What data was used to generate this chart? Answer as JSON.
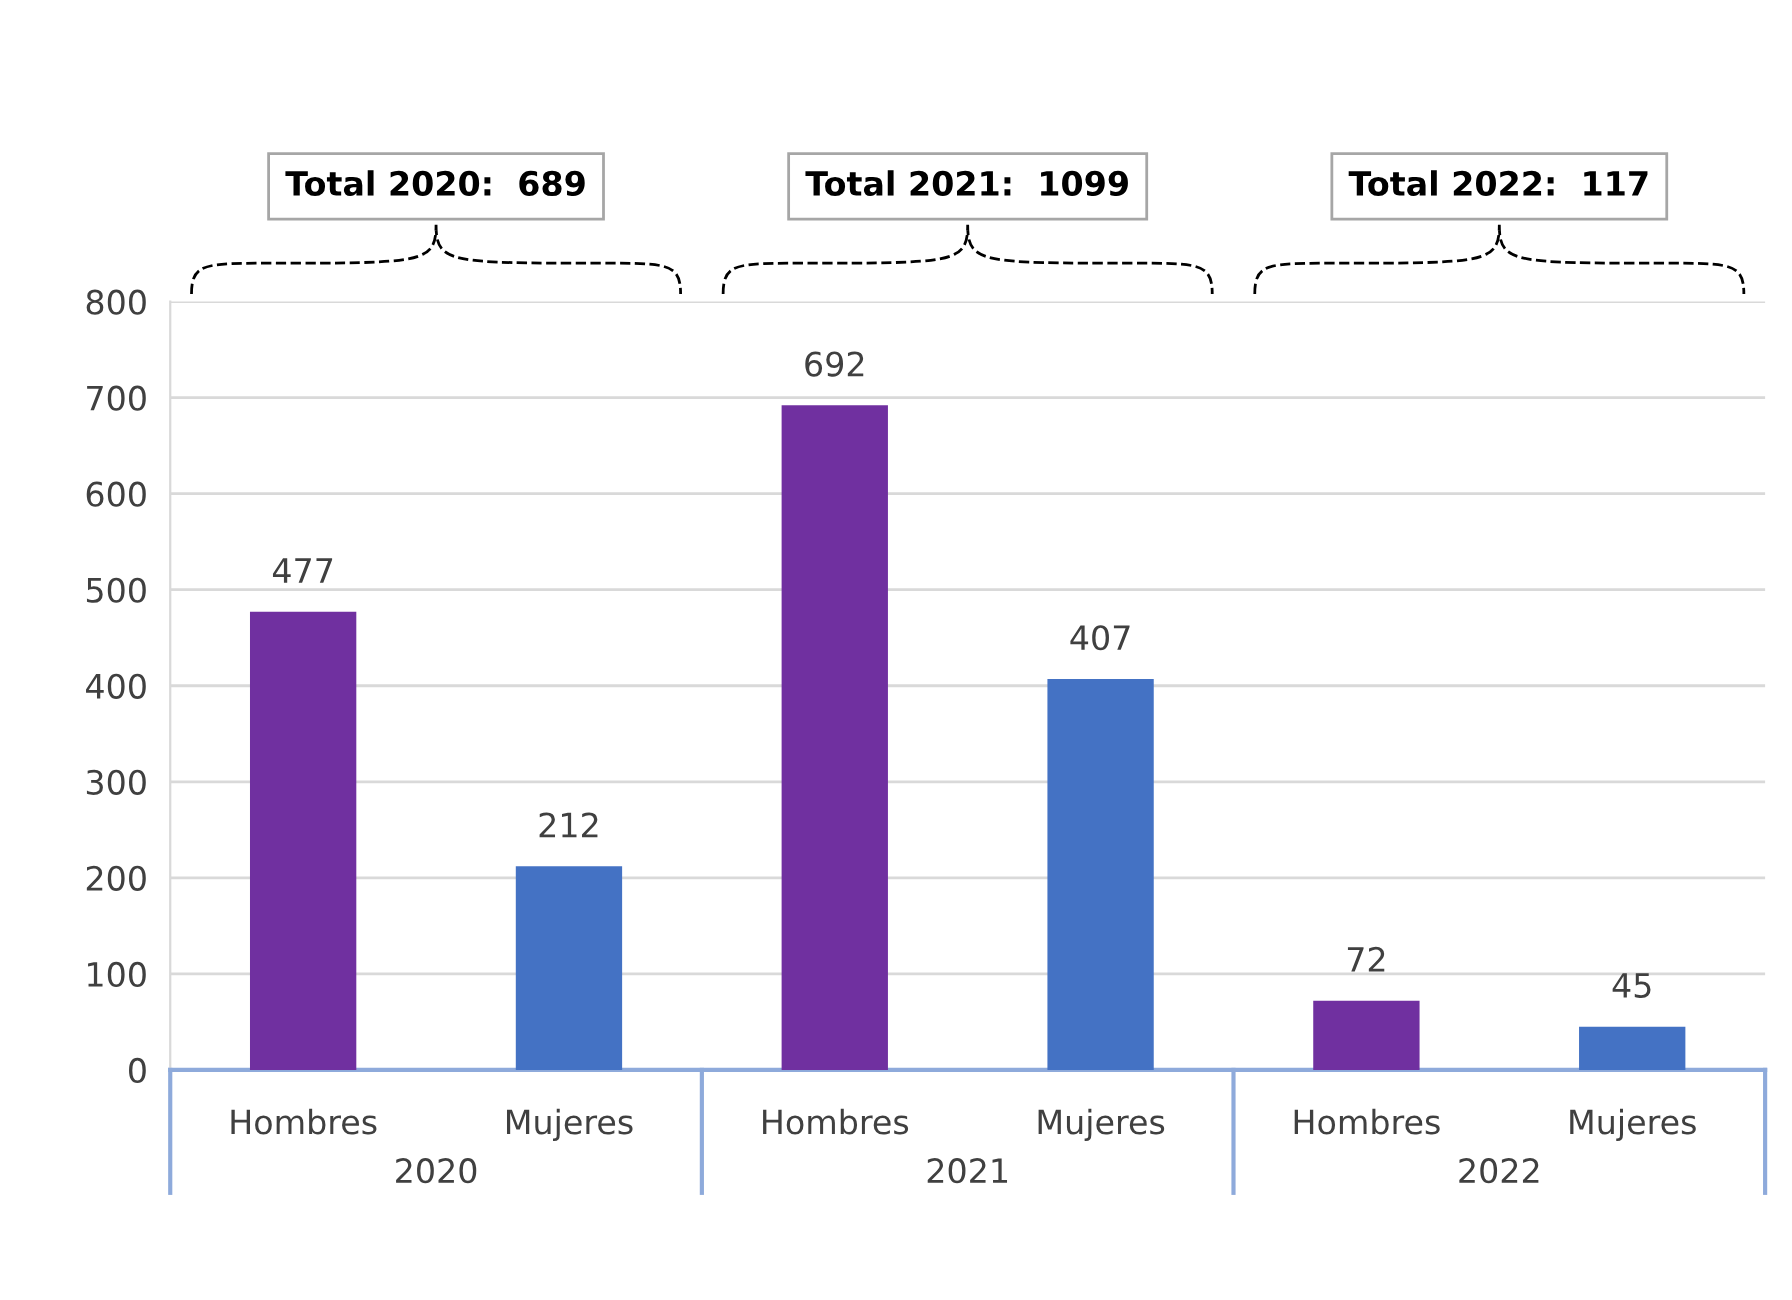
{
  "chart_data": {
    "type": "bar",
    "categories": [
      "Hombres",
      "Mujeres",
      "Hombres",
      "Mujeres",
      "Hombres",
      "Mujeres"
    ],
    "values": [
      477,
      212,
      692,
      407,
      72,
      45
    ],
    "colors": [
      "#7030a0",
      "#4472c4",
      "#7030a0",
      "#4472c4",
      "#7030a0",
      "#4472c4"
    ],
    "ylim": [
      0,
      800
    ],
    "yticks": [
      0,
      100,
      200,
      300,
      400,
      500,
      600,
      700,
      800
    ],
    "grid": "y",
    "data_labels": true,
    "annotations": [
      "Total 2020:  689",
      "Total 2021:  1099",
      "Total 2022:  117",
      "2020",
      "2021",
      "2022"
    ]
  }
}
